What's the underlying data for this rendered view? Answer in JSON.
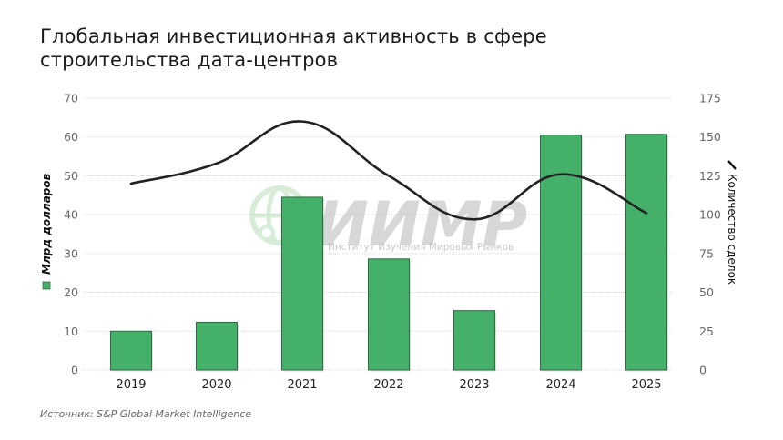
{
  "header": {
    "title_line1": "Глобальная инвестиционная активность в сфере",
    "title_line2": "строительства дата-центров"
  },
  "watermark": {
    "logo_text": "ИИМР",
    "subtitle": "Институт Изучения Мировых Рынков"
  },
  "footer": {
    "source": "Источник: S&P Global Market Intelligence"
  },
  "colors": {
    "bar": "#45b06a",
    "bar_border": "#2f6b40",
    "line": "#222222",
    "grid": "#d0d0d0"
  },
  "chart_data": {
    "type": "bar+line",
    "title": "Глобальная инвестиционная активность в сфере строительства дата-центров",
    "categories": [
      "2019",
      "2020",
      "2021",
      "2022",
      "2023",
      "2024",
      "2025"
    ],
    "series": [
      {
        "name": "Млрд долларов",
        "type": "bar",
        "axis": "left",
        "values": [
          10,
          12.3,
          44.5,
          28.6,
          15.3,
          60.5,
          60.7
        ]
      },
      {
        "name": "Количество сделок",
        "type": "line",
        "axis": "right",
        "values": [
          120,
          133,
          160,
          125,
          97,
          126,
          101
        ]
      }
    ],
    "ylabel": "Млрд долларов",
    "y2label": "Количество сделок",
    "ylim": [
      0,
      70
    ],
    "y2lim": [
      0,
      175
    ],
    "yticks": [
      "0",
      "10",
      "20",
      "30",
      "40",
      "50",
      "60",
      "70"
    ],
    "y2ticks": [
      "0",
      "25",
      "50",
      "75",
      "100",
      "125",
      "150",
      "175"
    ],
    "grid": true,
    "legend_position": "axis-titles",
    "source": "Источник: S&P Global Market Intelligence"
  }
}
